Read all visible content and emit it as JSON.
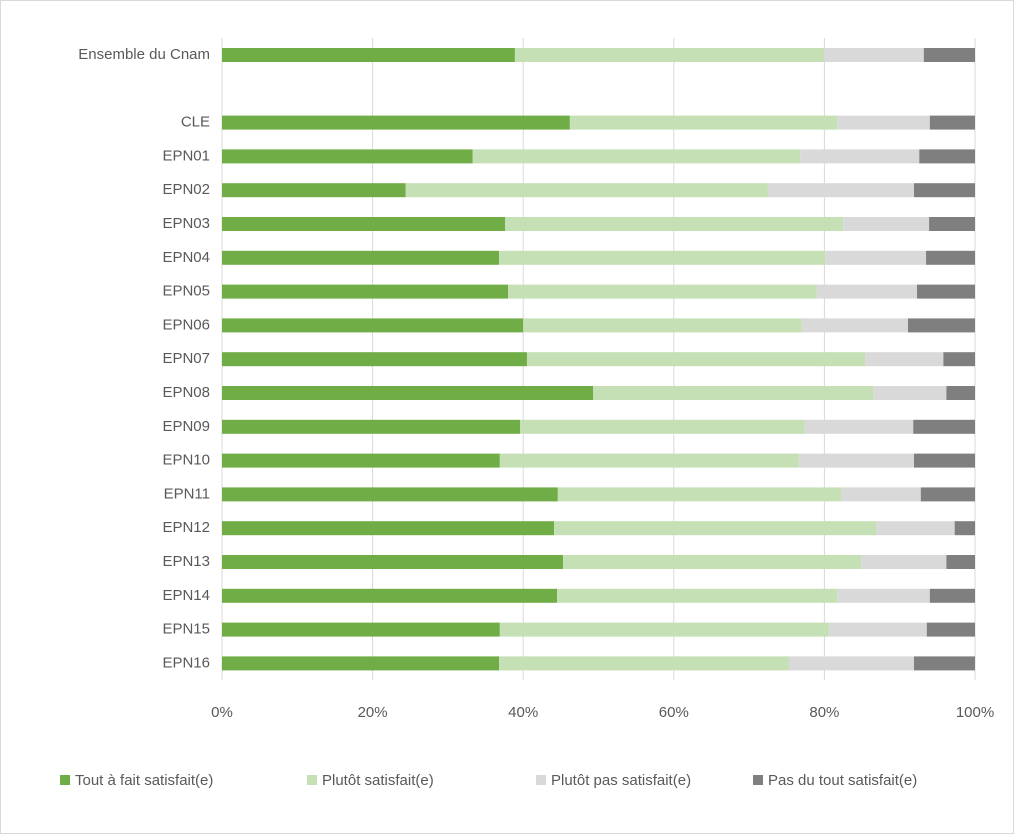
{
  "chart_data": {
    "type": "stacked-bar",
    "orientation": "horizontal",
    "categories": [
      "Ensemble du Cnam",
      null,
      "CLE",
      "EPN01",
      "EPN02",
      "EPN03",
      "EPN04",
      "EPN05",
      "EPN06",
      "EPN07",
      "EPN08",
      "EPN09",
      "EPN10",
      "EPN11",
      "EPN12",
      "EPN13",
      "EPN14",
      "EPN15",
      "EPN16"
    ],
    "series": [
      {
        "name": "Tout à fait satisfait(e)",
        "color": "#70ad47",
        "values": [
          38.9,
          null,
          46.2,
          33.3,
          24.4,
          37.6,
          36.8,
          38.0,
          40.0,
          40.5,
          49.3,
          39.6,
          36.9,
          44.6,
          44.1,
          45.3,
          44.5,
          36.9,
          36.8
        ]
      },
      {
        "name": "Plutôt satisfait(e)",
        "color": "#c5e0b4",
        "values": [
          41.1,
          null,
          35.5,
          43.5,
          48.1,
          44.9,
          43.3,
          41.0,
          37.0,
          44.9,
          37.2,
          37.8,
          39.7,
          37.6,
          42.8,
          39.6,
          37.2,
          43.7,
          38.5
        ]
      },
      {
        "name": "Plutôt pas satisfait(e)",
        "color": "#d9d9d9",
        "values": [
          13.2,
          null,
          12.3,
          15.8,
          19.4,
          11.4,
          13.4,
          13.3,
          14.1,
          10.4,
          9.7,
          14.4,
          15.3,
          10.6,
          10.4,
          11.3,
          12.3,
          13.0,
          16.6
        ]
      },
      {
        "name": "Pas du tout satisfait(e)",
        "color": "#7f7f7f",
        "values": [
          6.8,
          null,
          6.0,
          7.4,
          8.1,
          6.1,
          6.5,
          7.7,
          8.9,
          4.2,
          3.8,
          8.2,
          8.1,
          7.2,
          2.7,
          3.8,
          6.0,
          6.4,
          8.1
        ]
      }
    ],
    "xlim": [
      0,
      100
    ],
    "xticks": [
      {
        "value": 0,
        "label": "0%"
      },
      {
        "value": 20,
        "label": "20%"
      },
      {
        "value": 40,
        "label": "40%"
      },
      {
        "value": 60,
        "label": "60%"
      },
      {
        "value": 80,
        "label": "80%"
      },
      {
        "value": 100,
        "label": "100%"
      }
    ],
    "grid": true,
    "legend": "bottom"
  }
}
